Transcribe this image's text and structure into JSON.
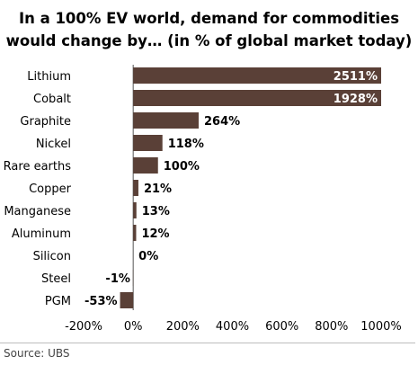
{
  "title_line1": "In a 100% EV world, demand for commodities",
  "title_line2": "would change by… (in % of global market today)",
  "source": "Source:  UBS",
  "colors": {
    "bar": "#5a4037",
    "axis": "#555555",
    "grid": "#d9d9d9",
    "inside_label": "#ffffff"
  },
  "chart_data": {
    "type": "bar",
    "orientation": "horizontal",
    "title": "In a 100% EV world, demand for commodities would change by… (in % of global market today)",
    "categories": [
      "Lithium",
      "Cobalt",
      "Graphite",
      "Nickel",
      "Rare earths",
      "Copper",
      "Manganese",
      "Aluminum",
      "Silicon",
      "Steel",
      "PGM"
    ],
    "values": [
      2511,
      1928,
      264,
      118,
      100,
      21,
      13,
      12,
      0,
      -1,
      -53
    ],
    "value_labels": [
      "2511%",
      "1928%",
      "264%",
      "118%",
      "100%",
      "21%",
      "13%",
      "12%",
      "0%",
      "-1%",
      "-53%"
    ],
    "xlim": [
      -200,
      1000
    ],
    "xticks": [
      -200,
      0,
      200,
      400,
      600,
      800,
      1000
    ],
    "xtick_labels": [
      "-200%",
      "0%",
      "200%",
      "400%",
      "600%",
      "800%",
      "1000%"
    ],
    "axis_break": "bars exceeding 1000% are truncated at the axis maximum",
    "grid": false,
    "legend": "none"
  }
}
